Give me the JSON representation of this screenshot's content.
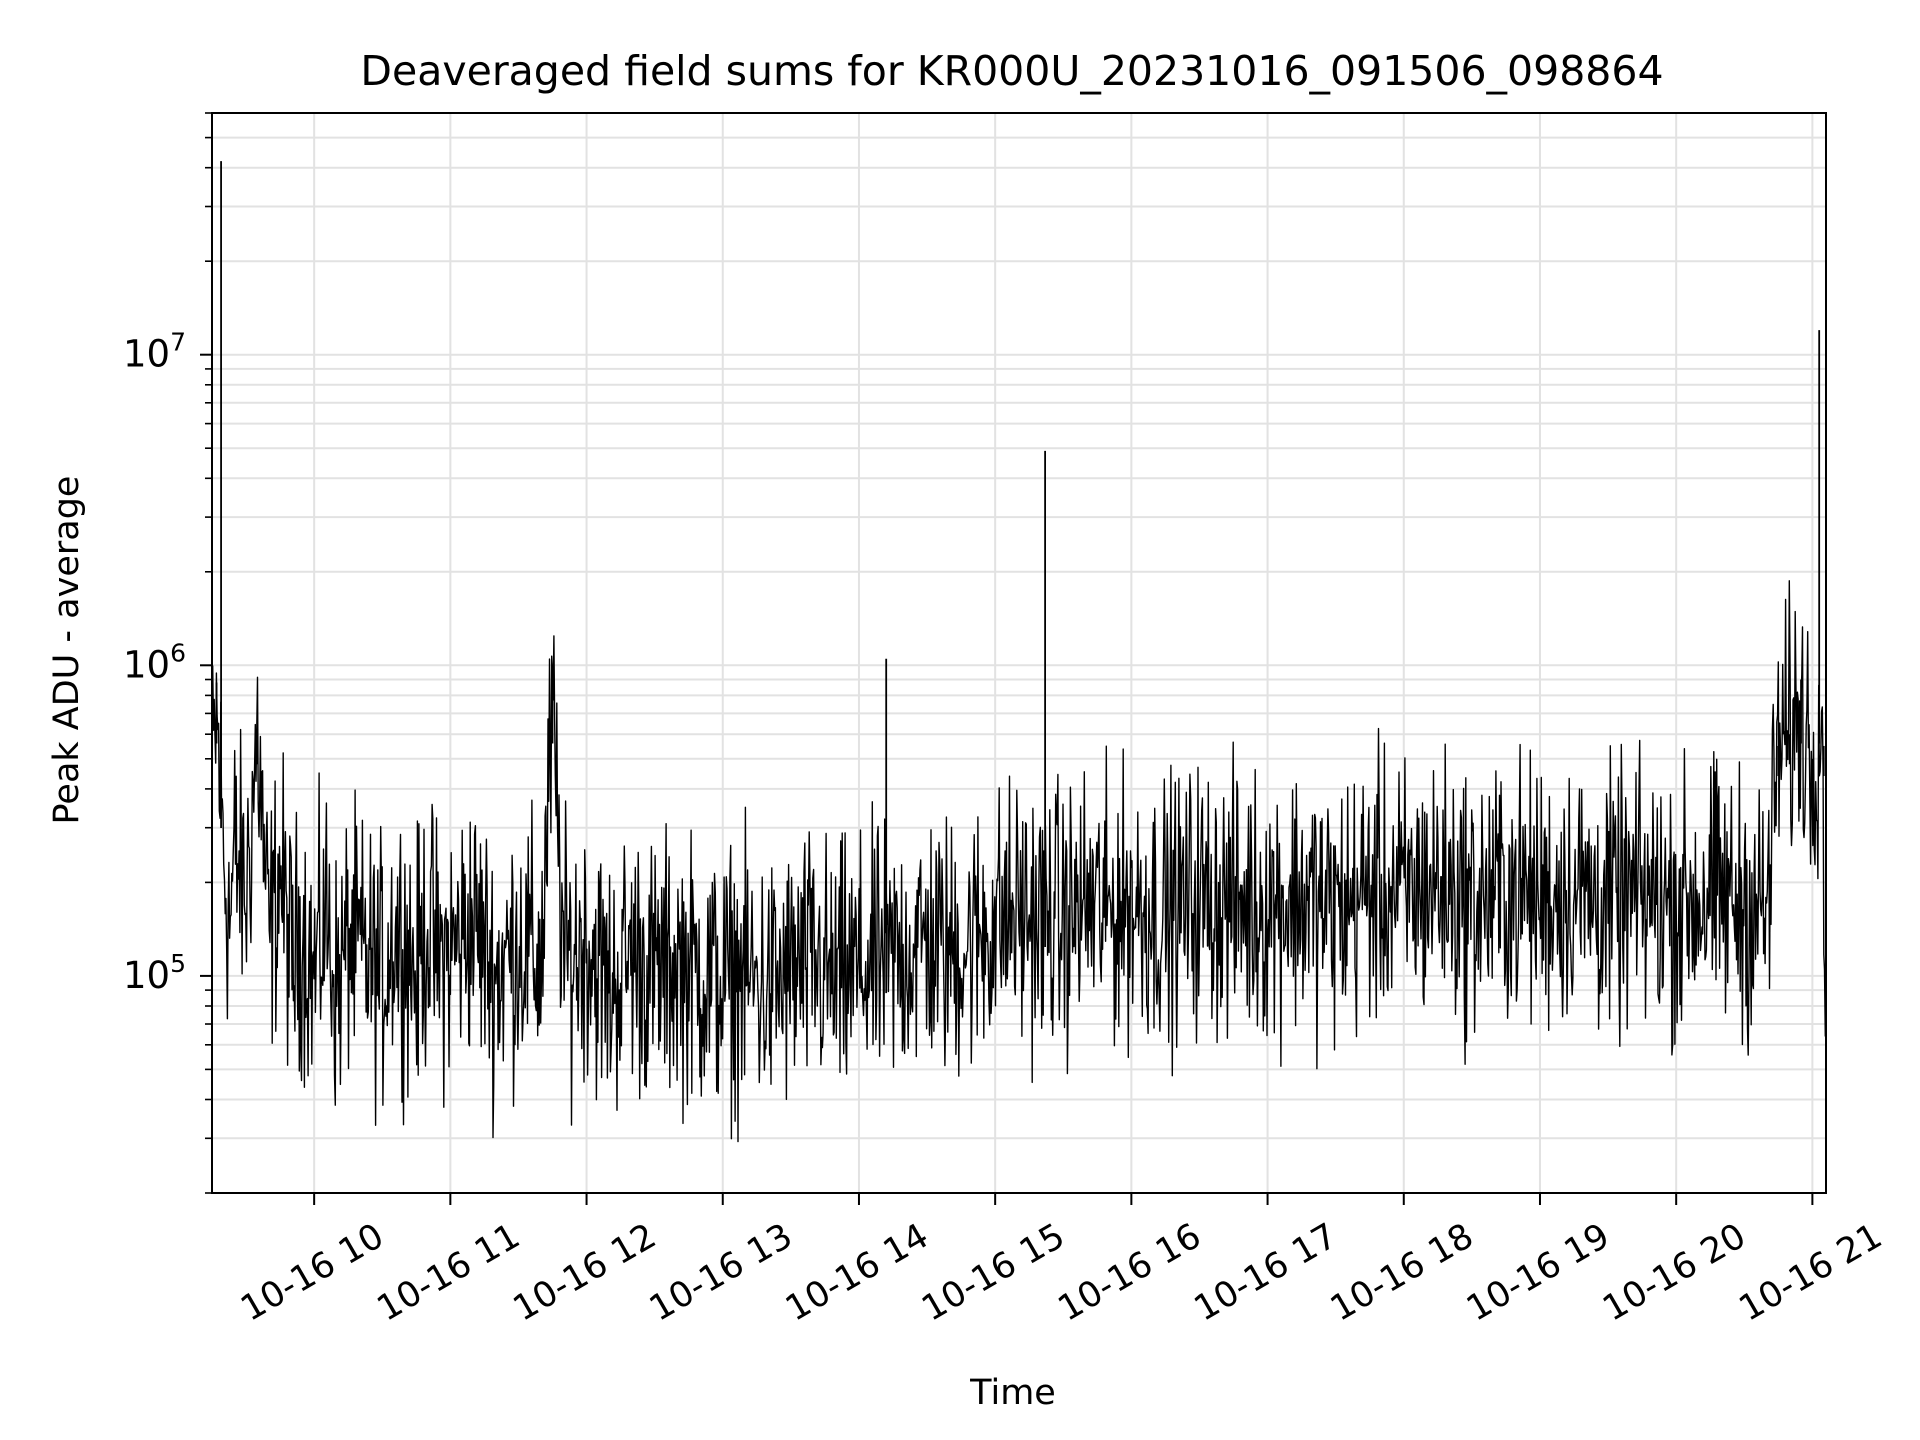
{
  "chart_data": {
    "type": "line",
    "title": "Deaveraged field sums for KR000U_20231016_091506_098864",
    "xlabel": "Time",
    "ylabel": "Peak ADU - average",
    "yscale": "log",
    "grid": true,
    "grid_minor": true,
    "line_color": "#000000",
    "grid_color": "#e2e2e2",
    "x_range": [
      "2023-10-16 09:15",
      "2023-10-16 21:06"
    ],
    "ylim": [
      20000,
      60000000
    ],
    "x_ticks": [
      {
        "time": "2023-10-16 10:00",
        "label": "10-16 10"
      },
      {
        "time": "2023-10-16 11:00",
        "label": "10-16 11"
      },
      {
        "time": "2023-10-16 12:00",
        "label": "10-16 12"
      },
      {
        "time": "2023-10-16 13:00",
        "label": "10-16 13"
      },
      {
        "time": "2023-10-16 14:00",
        "label": "10-16 14"
      },
      {
        "time": "2023-10-16 15:00",
        "label": "10-16 15"
      },
      {
        "time": "2023-10-16 16:00",
        "label": "10-16 16"
      },
      {
        "time": "2023-10-16 17:00",
        "label": "10-16 17"
      },
      {
        "time": "2023-10-16 18:00",
        "label": "10-16 18"
      },
      {
        "time": "2023-10-16 19:00",
        "label": "10-16 19"
      },
      {
        "time": "2023-10-16 20:00",
        "label": "10-16 20"
      },
      {
        "time": "2023-10-16 21:00",
        "label": "10-16 21"
      }
    ],
    "y_ticks": [
      {
        "value": 100000,
        "base": "10",
        "exp": "5"
      },
      {
        "value": 1000000,
        "base": "10",
        "exp": "6"
      },
      {
        "value": 10000000,
        "base": "10",
        "exp": "7"
      }
    ],
    "series": [
      {
        "x": [
          "2023-10-16 09:15",
          "2023-10-16 09:17",
          "2023-10-16 09:19",
          "2023-10-16 09:21",
          "2023-10-16 09:23",
          "2023-10-16 09:25",
          "2023-10-16 09:30",
          "2023-10-16 09:35",
          "2023-10-16 09:40",
          "2023-10-16 09:45",
          "2023-10-16 09:50",
          "2023-10-16 09:55",
          "2023-10-16 10:00",
          "2023-10-16 10:05",
          "2023-10-16 10:10",
          "2023-10-16 10:15",
          "2023-10-16 10:20",
          "2023-10-16 10:25",
          "2023-10-16 10:30",
          "2023-10-16 10:35",
          "2023-10-16 10:40",
          "2023-10-16 10:45",
          "2023-10-16 10:50",
          "2023-10-16 10:55",
          "2023-10-16 11:00",
          "2023-10-16 11:10",
          "2023-10-16 11:20",
          "2023-10-16 11:30",
          "2023-10-16 11:40",
          "2023-10-16 11:45",
          "2023-10-16 11:50",
          "2023-10-16 12:00",
          "2023-10-16 12:10",
          "2023-10-16 12:20",
          "2023-10-16 12:30",
          "2023-10-16 12:40",
          "2023-10-16 12:50",
          "2023-10-16 13:00",
          "2023-10-16 13:10",
          "2023-10-16 13:20",
          "2023-10-16 13:30",
          "2023-10-16 13:40",
          "2023-10-16 13:50",
          "2023-10-16 14:00",
          "2023-10-16 14:10",
          "2023-10-16 14:12",
          "2023-10-16 14:14",
          "2023-10-16 14:20",
          "2023-10-16 14:30",
          "2023-10-16 14:40",
          "2023-10-16 14:50",
          "2023-10-16 15:00",
          "2023-10-16 15:10",
          "2023-10-16 15:20",
          "2023-10-16 15:22",
          "2023-10-16 15:24",
          "2023-10-16 15:30",
          "2023-10-16 15:40",
          "2023-10-16 15:50",
          "2023-10-16 16:00",
          "2023-10-16 16:15",
          "2023-10-16 16:30",
          "2023-10-16 16:45",
          "2023-10-16 17:00",
          "2023-10-16 17:15",
          "2023-10-16 17:30",
          "2023-10-16 17:45",
          "2023-10-16 18:00",
          "2023-10-16 18:15",
          "2023-10-16 18:30",
          "2023-10-16 18:45",
          "2023-10-16 19:00",
          "2023-10-16 19:15",
          "2023-10-16 19:30",
          "2023-10-16 19:45",
          "2023-10-16 20:00",
          "2023-10-16 20:15",
          "2023-10-16 20:30",
          "2023-10-16 20:40",
          "2023-10-16 20:45",
          "2023-10-16 20:50",
          "2023-10-16 20:55",
          "2023-10-16 21:00",
          "2023-10-16 21:03",
          "2023-10-16 21:05"
        ],
        "y": [
          400000,
          880000,
          42000000,
          200000,
          150000,
          250000,
          180000,
          600000,
          130000,
          220000,
          110000,
          140000,
          100000,
          160000,
          90000,
          130000,
          120000,
          110000,
          100000,
          140000,
          130000,
          100000,
          150000,
          110000,
          120000,
          150000,
          100000,
          130000,
          110000,
          960000,
          110000,
          130000,
          90000,
          120000,
          100000,
          110000,
          100000,
          95000,
          100000,
          90000,
          100000,
          110000,
          95000,
          105000,
          110000,
          1050000,
          110000,
          120000,
          130000,
          120000,
          130000,
          150000,
          160000,
          150000,
          4900000,
          160000,
          150000,
          170000,
          160000,
          170000,
          160000,
          180000,
          170000,
          170000,
          180000,
          160000,
          190000,
          180000,
          200000,
          170000,
          190000,
          180000,
          190000,
          170000,
          180000,
          170000,
          180000,
          170000,
          160000,
          550000,
          600000,
          900000,
          500000,
          12000000,
          550000
        ]
      }
    ]
  }
}
